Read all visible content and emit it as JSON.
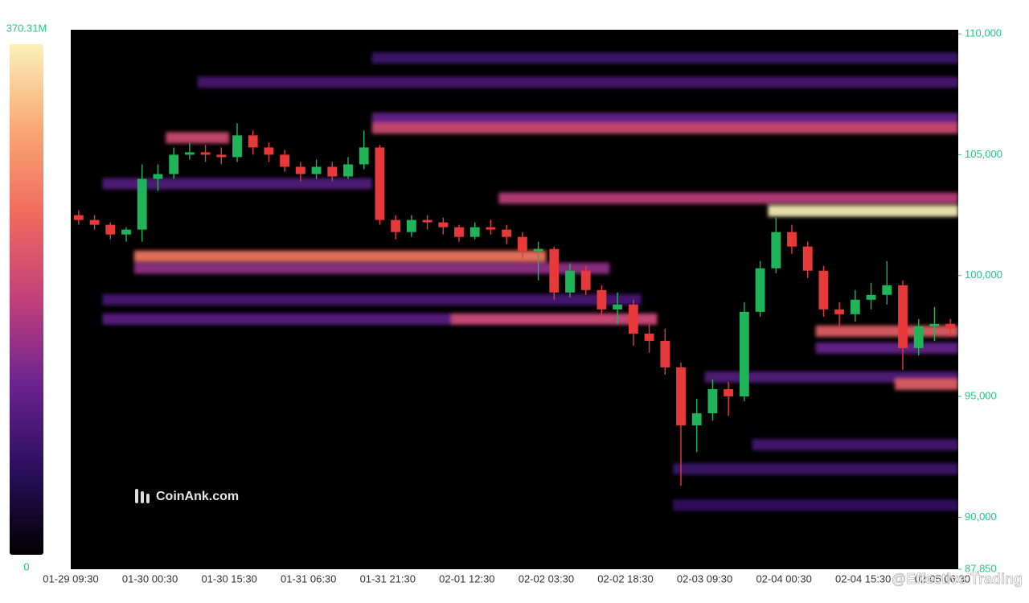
{
  "chart_data": {
    "type": "liquidation-heatmap",
    "watermark": "CoinAnk.com",
    "credit": "@Effective Trading",
    "colorscale": [
      "#000000",
      "#2a0f5c",
      "#6a2390",
      "#c2407a",
      "#f06a5e",
      "#f9a874",
      "#fbf0b8"
    ],
    "colorbar_lim": [
      0,
      {
        "value": 370.31,
        "label": "370.31M"
      }
    ],
    "up_color": "#1fb35a",
    "down_color": "#e8393a",
    "xticks": [
      "01-29 09:30",
      "01-30 00:30",
      "01-30 15:30",
      "01-31 06:30",
      "01-31 21:30",
      "02-01 12:30",
      "02-02 03:30",
      "02-02 18:30",
      "02-03 09:30",
      "02-04 00:30",
      "02-04 15:30",
      "02-05 06:30"
    ],
    "ylim": [
      87850,
      110170
    ],
    "yticks": [
      {
        "value": 87850,
        "label": "87,850"
      },
      {
        "value": 90000,
        "label": "90,000"
      },
      {
        "value": 95000,
        "label": "95,000"
      },
      {
        "value": 100000,
        "label": "100,000"
      },
      {
        "value": 105000,
        "label": "105,000"
      },
      {
        "value": 110000,
        "label": "110,000"
      }
    ],
    "candles": {
      "open": [
        102500,
        102300,
        102100,
        101700,
        101900,
        104000,
        104200,
        105000,
        105100,
        105000,
        104900,
        105800,
        105300,
        105000,
        104500,
        104200,
        104500,
        104100,
        104600,
        105300,
        102300,
        101800,
        102300,
        102200,
        102000,
        101600,
        102000,
        101900,
        101600,
        101000,
        101100,
        99300,
        100200,
        99400,
        98600,
        98800,
        97600,
        97300,
        96200,
        93800,
        94300,
        95300,
        95000,
        98500,
        100300,
        101800,
        101200,
        100200,
        98600,
        98400,
        99000,
        99200,
        99600,
        97000,
        97900,
        98000
      ],
      "high": [
        102700,
        102500,
        102200,
        102000,
        104600,
        104600,
        105300,
        105500,
        105400,
        105300,
        106300,
        106000,
        105500,
        105200,
        104700,
        104800,
        104700,
        104900,
        106000,
        105400,
        102500,
        102500,
        102500,
        102400,
        102100,
        102200,
        102300,
        102100,
        101800,
        101400,
        101200,
        100500,
        100400,
        99600,
        99300,
        99000,
        98000,
        97800,
        96400,
        94900,
        95700,
        95600,
        98900,
        100600,
        102400,
        102100,
        101400,
        100400,
        98900,
        99400,
        99700,
        100600,
        99800,
        98200,
        98700,
        98200
      ],
      "low": [
        102100,
        101900,
        101500,
        101400,
        101400,
        103500,
        104000,
        104800,
        104700,
        104600,
        104700,
        105000,
        104700,
        104300,
        103900,
        104000,
        103900,
        104000,
        104400,
        102100,
        101500,
        101600,
        101900,
        101700,
        101400,
        101500,
        101700,
        101300,
        100700,
        99800,
        99000,
        99100,
        99200,
        98300,
        98000,
        97100,
        96800,
        95900,
        91300,
        92700,
        94000,
        94200,
        94800,
        98300,
        100100,
        100900,
        99900,
        98300,
        97900,
        98100,
        98600,
        98800,
        96100,
        96700,
        97300,
        97500
      ],
      "close": [
        102300,
        102100,
        101700,
        101900,
        104000,
        104200,
        105000,
        105100,
        105000,
        104900,
        105800,
        105300,
        105000,
        104500,
        104200,
        104500,
        104100,
        104600,
        105300,
        102300,
        101800,
        102300,
        102200,
        102000,
        101600,
        102000,
        101900,
        101600,
        101000,
        101100,
        99300,
        100200,
        99400,
        98600,
        98800,
        97600,
        97300,
        96200,
        93800,
        94300,
        95300,
        95000,
        98500,
        100300,
        101800,
        101200,
        100200,
        98600,
        98400,
        99000,
        99200,
        99600,
        97000,
        97900,
        98000,
        97800
      ]
    },
    "heatmap": [
      {
        "price": 109000,
        "from": 19,
        "to": 56,
        "value": 80
      },
      {
        "price": 108000,
        "from": 8,
        "to": 56,
        "value": 90
      },
      {
        "price": 106500,
        "from": 19,
        "to": 56,
        "value": 120
      },
      {
        "price": 106100,
        "from": 19,
        "to": 56,
        "value": 200
      },
      {
        "price": 105700,
        "from": 6,
        "to": 10,
        "value": 200
      },
      {
        "price": 103800,
        "from": 2,
        "to": 19,
        "value": 100
      },
      {
        "price": 103200,
        "from": 27,
        "to": 56,
        "value": 180
      },
      {
        "price": 102670,
        "from": 44,
        "to": 56,
        "value": 370
      },
      {
        "price": 100800,
        "from": 4,
        "to": 30,
        "value": 260
      },
      {
        "price": 100300,
        "from": 4,
        "to": 34,
        "value": 150
      },
      {
        "price": 99000,
        "from": 2,
        "to": 36,
        "value": 90
      },
      {
        "price": 98200,
        "from": 2,
        "to": 37,
        "value": 110
      },
      {
        "price": 98200,
        "from": 24,
        "to": 37,
        "value": 200
      },
      {
        "price": 97700,
        "from": 47,
        "to": 56,
        "value": 230
      },
      {
        "price": 97000,
        "from": 47,
        "to": 56,
        "value": 120
      },
      {
        "price": 95800,
        "from": 40,
        "to": 56,
        "value": 100
      },
      {
        "price": 95500,
        "from": 52,
        "to": 56,
        "value": 230
      },
      {
        "price": 93000,
        "from": 43,
        "to": 56,
        "value": 90
      },
      {
        "price": 92000,
        "from": 38,
        "to": 56,
        "value": 80
      },
      {
        "price": 90500,
        "from": 38,
        "to": 56,
        "value": 70
      }
    ]
  }
}
